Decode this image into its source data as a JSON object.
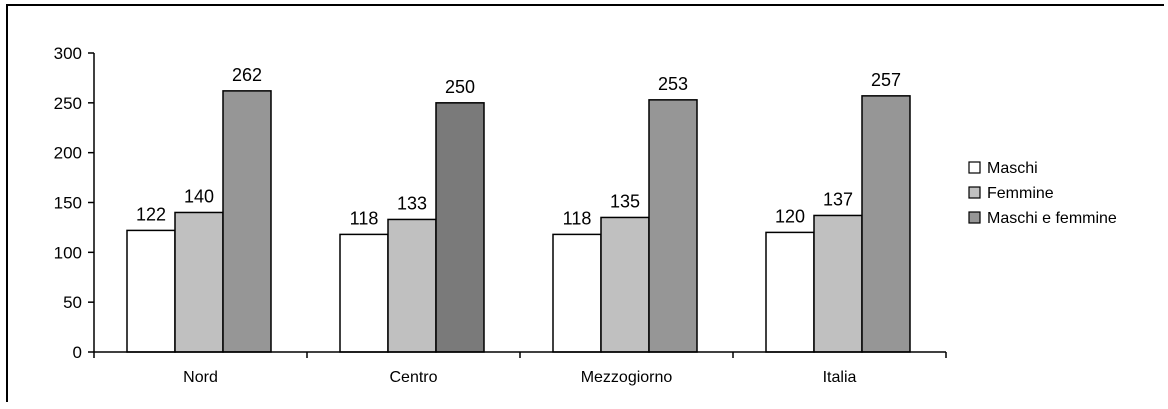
{
  "chart_data": {
    "type": "bar",
    "title": "",
    "xlabel": "",
    "ylabel": "",
    "categories": [
      "Nord",
      "Centro",
      "Mezzogiorno",
      "Italia"
    ],
    "ylim": [
      0,
      300
    ],
    "yticks": [
      0,
      50,
      100,
      150,
      200,
      250,
      300
    ],
    "ytick_labels": [
      "0",
      "50",
      "100",
      "150",
      "200",
      "250",
      "300"
    ],
    "grid": false,
    "legend_position": "right",
    "series": [
      {
        "name": "Maschi",
        "values": [
          122,
          118,
          118,
          120
        ],
        "color": "#ffffff"
      },
      {
        "name": "Femmine",
        "values": [
          140,
          133,
          135,
          137
        ],
        "color": "#c0c0c0"
      },
      {
        "name": "Maschi e femmine",
        "values": [
          262,
          250,
          253,
          257
        ],
        "color": "#969696"
      }
    ],
    "highlight": {
      "category_index": 1,
      "series_index": 2,
      "color": "#7a7a7a"
    },
    "data_labels": [
      [
        "122",
        "118",
        "118",
        "120"
      ],
      [
        "140",
        "133",
        "135",
        "137"
      ],
      [
        "262",
        "250",
        "253",
        "257"
      ]
    ]
  }
}
